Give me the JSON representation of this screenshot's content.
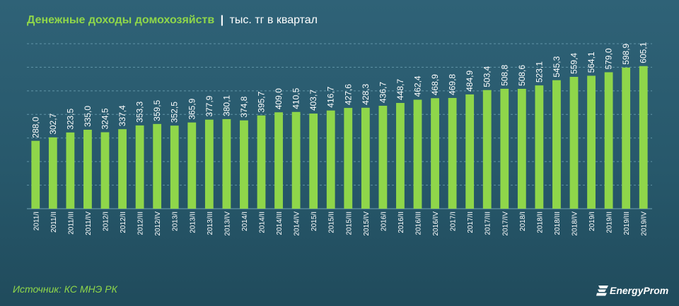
{
  "header": {
    "title": "Денежные доходы домохозяйств",
    "separator": "|",
    "unit": "тыс. тг в квартал"
  },
  "footer": {
    "source": "Источник: КС МНЭ РК",
    "logo": "EnergyProm"
  },
  "colors": {
    "bar": "#8fd64a",
    "title": "#8fd64a",
    "text": "#ffffff",
    "grid": "#6fa3b5"
  },
  "chart_data": {
    "type": "bar",
    "title": "Денежные доходы домохозяйств | тыс. тг в квартал",
    "xlabel": "",
    "ylabel": "",
    "ylim": [
      0,
      700
    ],
    "grid": true,
    "categories": [
      "2011/I",
      "2011/II",
      "2011/III",
      "2011/IV",
      "2012/I",
      "2012/II",
      "2012/III",
      "2012/IV",
      "2013/I",
      "2013/II",
      "2013/III",
      "2013/IV",
      "2014/I",
      "2014/II",
      "2014/III",
      "2014/IV",
      "2015/I",
      "2015/II",
      "2015/III",
      "2015/IV",
      "2016/I",
      "2016/II",
      "2016/III",
      "2016/IV",
      "2017/I",
      "2017/II",
      "2017/III",
      "2017/IV",
      "2018/I",
      "2018/II",
      "2018/III",
      "2018/IV",
      "2019/I",
      "2019/II",
      "2019/III",
      "2019/IV"
    ],
    "values": [
      288.0,
      302.7,
      323.5,
      335.0,
      324.5,
      337.4,
      353.3,
      359.5,
      352.5,
      365.9,
      377.9,
      380.1,
      374.8,
      395.7,
      409.0,
      410.5,
      403.7,
      416.7,
      427.6,
      428.3,
      436.7,
      448.7,
      462.4,
      468.9,
      469.8,
      484.9,
      503.4,
      508.8,
      508.6,
      523.1,
      545.3,
      559.4,
      564.1,
      579.0,
      598.9,
      605.1
    ],
    "labels": [
      "288,0",
      "302,7",
      "323,5",
      "335,0",
      "324,5",
      "337,4",
      "353,3",
      "359,5",
      "352,5",
      "365,9",
      "377,9",
      "380,1",
      "374,8",
      "395,7",
      "409,0",
      "410,5",
      "403,7",
      "416,7",
      "427,6",
      "428,3",
      "436,7",
      "448,7",
      "462,4",
      "468,9",
      "469,8",
      "484,9",
      "503,4",
      "508,8",
      "508,6",
      "523,1",
      "545,3",
      "559,4",
      "564,1",
      "579,0",
      "598,9",
      "605,1"
    ]
  }
}
